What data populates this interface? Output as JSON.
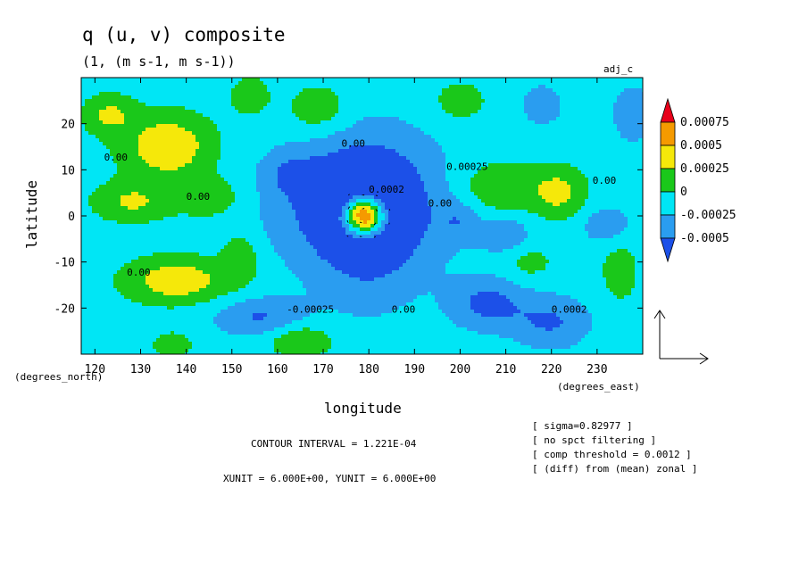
{
  "header": {
    "title": "q (u, v) composite",
    "subtitle": "(1, (m s-1, m s-1))",
    "tag": "adj_c"
  },
  "footer": {
    "contour_interval": "CONTOUR INTERVAL = 1.221E-04",
    "units": "XUNIT = 6.000E+00, YUNIT = 6.000E+00"
  },
  "notes": [
    "[ sigma=0.82977 ]",
    "[ no spct filtering ]",
    "[ comp threshold = 0.0012 ]",
    "[ (diff) from (mean) zonal ]"
  ],
  "chart_data": {
    "type": "heatmap",
    "title": "q (u, v) composite",
    "subtitle": "(1, (m s-1, m s-1))",
    "xlabel": "longitude",
    "ylabel": "latitude",
    "x_units": "(degrees_east)",
    "y_units": "(degrees_north)",
    "xlim": [
      117,
      240
    ],
    "ylim": [
      -30,
      30
    ],
    "x_ticks": [
      120,
      130,
      140,
      150,
      160,
      170,
      180,
      190,
      200,
      210,
      220,
      230
    ],
    "y_ticks": [
      -20,
      -10,
      0,
      10,
      20
    ],
    "colorbar": {
      "levels": [
        "0.00075",
        "0.0005",
        "0.00025",
        "0",
        "-0.00025",
        "-0.0005"
      ],
      "colors": [
        "#e8001a",
        "#f59a00",
        "#f5e80a",
        "#1ac81a",
        "#00e6f5",
        "#2a9df0",
        "#1c50e8"
      ]
    },
    "contour_labels": [
      {
        "text": "0.00",
        "lon": 140,
        "lat": 3.5
      },
      {
        "text": "0.00",
        "lon": 122,
        "lat": 12
      },
      {
        "text": "0.00",
        "lon": 127,
        "lat": -13
      },
      {
        "text": "0.00",
        "lon": 174,
        "lat": 15
      },
      {
        "text": "-0.00025",
        "lon": 162,
        "lat": -21
      },
      {
        "text": "0.0002",
        "lon": 180,
        "lat": 5
      },
      {
        "text": "0.00025",
        "lon": 197,
        "lat": 10
      },
      {
        "text": "0.00",
        "lon": 193,
        "lat": 2
      },
      {
        "text": "0.00",
        "lon": 185,
        "lat": -21
      },
      {
        "text": "0.0002",
        "lon": 220,
        "lat": -21
      },
      {
        "text": "0.00",
        "lon": 229,
        "lat": 7
      }
    ],
    "field_blobs": [
      {
        "lon": 178,
        "lat": 3,
        "sx": 13,
        "sy": 10,
        "amp": -0.00062
      },
      {
        "lon": 180,
        "lat": -3,
        "sx": 8,
        "sy": 12,
        "amp": -0.00035
      },
      {
        "lon": 179,
        "lat": 0,
        "sx": 3.2,
        "sy": 3,
        "amp": 0.0017
      },
      {
        "lon": 136,
        "lat": 15,
        "sx": 7,
        "sy": 5,
        "amp": 0.00058
      },
      {
        "lon": 123,
        "lat": 22,
        "sx": 4,
        "sy": 3,
        "amp": 0.0004
      },
      {
        "lon": 128,
        "lat": 3,
        "sx": 6,
        "sy": 3,
        "amp": 0.0004
      },
      {
        "lon": 145,
        "lat": 4,
        "sx": 5,
        "sy": 3,
        "amp": 0.00032
      },
      {
        "lon": 138,
        "lat": -14,
        "sx": 8,
        "sy": 3.5,
        "amp": 0.00055
      },
      {
        "lon": 152,
        "lat": -9,
        "sx": 3,
        "sy": 4,
        "amp": 0.0003
      },
      {
        "lon": 169,
        "lat": 23,
        "sx": 5,
        "sy": 4,
        "amp": 0.00032
      },
      {
        "lon": 154,
        "lat": 26,
        "sx": 3,
        "sy": 3,
        "amp": 0.0003
      },
      {
        "lon": 209,
        "lat": 6,
        "sx": 7,
        "sy": 4,
        "amp": 0.00038
      },
      {
        "lon": 222,
        "lat": 5,
        "sx": 4,
        "sy": 4,
        "amp": 0.0004
      },
      {
        "lon": 200,
        "lat": 25,
        "sx": 4,
        "sy": 3,
        "amp": 0.00028
      },
      {
        "lon": 165,
        "lat": -27,
        "sx": 5,
        "sy": 2.5,
        "amp": 0.0004
      },
      {
        "lon": 137,
        "lat": -28,
        "sx": 3,
        "sy": 2,
        "amp": 0.0003
      },
      {
        "lon": 235,
        "lat": -12,
        "sx": 3,
        "sy": 5,
        "amp": 0.00025
      },
      {
        "lon": 215,
        "lat": -10,
        "sx": 4,
        "sy": 3,
        "amp": 0.00022
      },
      {
        "lon": 156,
        "lat": -22,
        "sx": 7,
        "sy": 3,
        "amp": -0.0004
      },
      {
        "lon": 206,
        "lat": -19,
        "sx": 6,
        "sy": 4,
        "amp": -0.00045
      },
      {
        "lon": 220,
        "lat": -23,
        "sx": 6,
        "sy": 4,
        "amp": -0.0004
      },
      {
        "lon": 210,
        "lat": -4,
        "sx": 4,
        "sy": 3,
        "amp": -0.00032
      },
      {
        "lon": 232,
        "lat": -2,
        "sx": 4,
        "sy": 3,
        "amp": -0.0003
      },
      {
        "lon": 238,
        "lat": 22,
        "sx": 3,
        "sy": 4,
        "amp": -0.00038
      },
      {
        "lon": 218,
        "lat": 24,
        "sx": 4,
        "sy": 4,
        "amp": -0.00022
      },
      {
        "lon": 163,
        "lat": 9,
        "sx": 4,
        "sy": 3,
        "amp": -0.00025
      },
      {
        "lon": 200,
        "lat": -1,
        "sx": 3,
        "sy": 3,
        "amp": -0.00025
      }
    ],
    "field_background": -0.00012,
    "vector_reference": {
      "u": 6.0,
      "v": 6.0
    }
  }
}
